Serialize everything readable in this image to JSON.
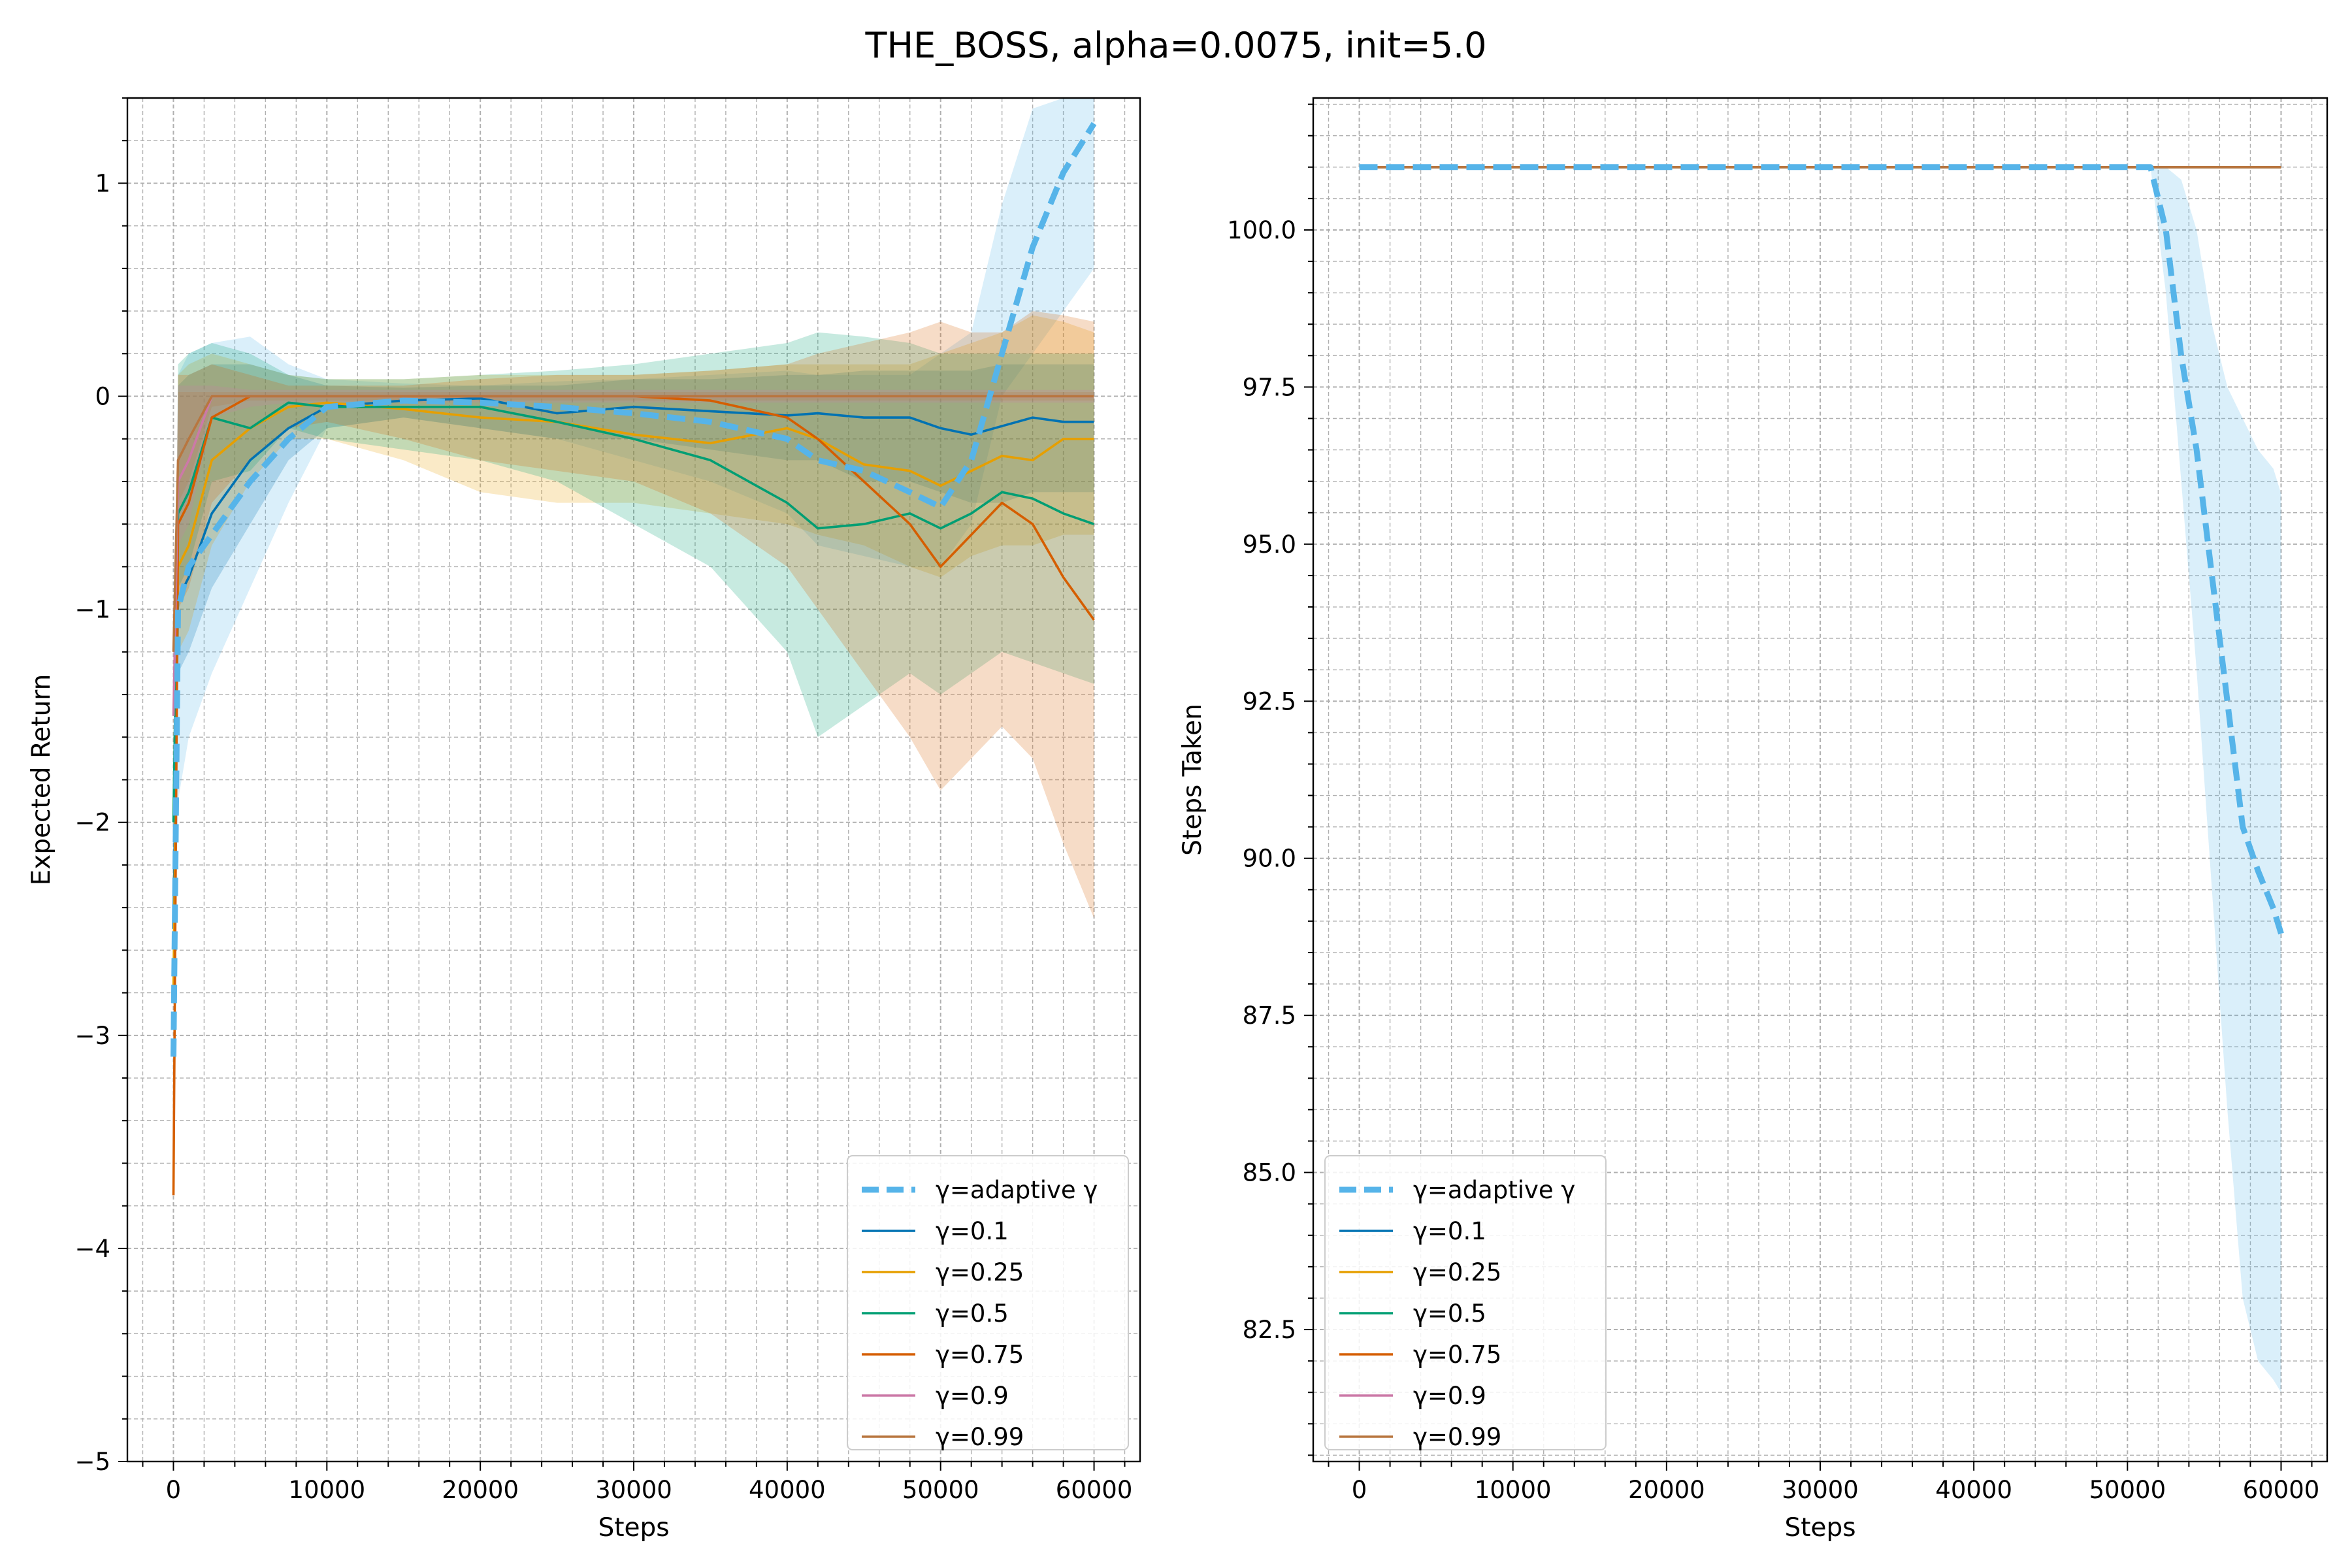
{
  "figure": {
    "title": "THE_BOSS, alpha=0.0075, init=5.0"
  },
  "colors": {
    "adaptive": "#56b4e9",
    "g01": "#0072b2",
    "g025": "#e69f00",
    "g05": "#009e73",
    "g075": "#d55e00",
    "g09": "#cc79a7",
    "g099": "#b8763f",
    "grid": "#b0b0b0"
  },
  "legend": {
    "entries": [
      {
        "label": "γ=adaptive γ",
        "color": "#56b4e9",
        "style": "dashed"
      },
      {
        "label": "γ=0.1",
        "color": "#0072b2",
        "style": "solid"
      },
      {
        "label": "γ=0.25",
        "color": "#e69f00",
        "style": "solid"
      },
      {
        "label": "γ=0.5",
        "color": "#009e73",
        "style": "solid"
      },
      {
        "label": "γ=0.75",
        "color": "#d55e00",
        "style": "solid"
      },
      {
        "label": "γ=0.9",
        "color": "#cc79a7",
        "style": "solid"
      },
      {
        "label": "γ=0.99",
        "color": "#b8763f",
        "style": "solid"
      }
    ]
  },
  "chart_data": [
    {
      "type": "line",
      "id": "left",
      "xlabel": "Steps",
      "ylabel": "Expected Return",
      "xlim": [
        -3000,
        63000
      ],
      "ylim": [
        -5,
        1.4
      ],
      "xticks": [
        0,
        10000,
        20000,
        30000,
        40000,
        50000,
        60000
      ],
      "yticks": [
        1,
        0,
        -1,
        -2,
        -3,
        -4,
        -5
      ],
      "ytick_labels": [
        "1",
        "0",
        "−1",
        "−2",
        "−3",
        "−4",
        "−5"
      ],
      "legend_loc": "lower right",
      "x": [
        0,
        300,
        1000,
        2500,
        5000,
        7500,
        10000,
        15000,
        20000,
        25000,
        30000,
        35000,
        40000,
        42000,
        45000,
        48000,
        50000,
        52000,
        54000,
        56000,
        58000,
        60000
      ],
      "series": [
        {
          "name": "γ=adaptive γ",
          "color": "#56b4e9",
          "style": "dashed",
          "values": [
            -3.1,
            -1.0,
            -0.8,
            -0.65,
            -0.4,
            -0.2,
            -0.05,
            -0.02,
            -0.03,
            -0.05,
            -0.08,
            -0.12,
            -0.2,
            -0.3,
            -0.35,
            -0.45,
            -0.52,
            -0.3,
            0.2,
            0.7,
            1.05,
            1.28
          ],
          "lower": [
            -3.1,
            -1.9,
            -1.6,
            -1.3,
            -0.9,
            -0.5,
            -0.15,
            -0.1,
            -0.15,
            -0.2,
            -0.3,
            -0.4,
            -0.55,
            -0.7,
            -0.75,
            -0.8,
            -0.8,
            -0.6,
            0.0,
            0.2,
            0.4,
            0.6
          ],
          "upper": [
            -3.1,
            0.1,
            0.2,
            0.25,
            0.28,
            0.15,
            0.08,
            0.06,
            0.05,
            0.07,
            0.08,
            0.1,
            0.12,
            0.1,
            0.1,
            0.1,
            0.2,
            0.3,
            0.9,
            1.35,
            1.4,
            1.4
          ]
        },
        {
          "name": "γ=0.1",
          "color": "#0072b2",
          "style": "solid",
          "values": [
            -2.5,
            -0.95,
            -0.85,
            -0.55,
            -0.3,
            -0.15,
            -0.05,
            -0.02,
            -0.01,
            -0.08,
            -0.05,
            -0.07,
            -0.09,
            -0.08,
            -0.1,
            -0.1,
            -0.15,
            -0.18,
            -0.14,
            -0.1,
            -0.12,
            -0.12
          ],
          "lower": [
            -2.5,
            -1.3,
            -1.2,
            -0.9,
            -0.6,
            -0.3,
            -0.15,
            -0.1,
            -0.15,
            -0.2,
            -0.2,
            -0.25,
            -0.3,
            -0.3,
            -0.4,
            -0.4,
            -0.45,
            -0.5,
            -0.5,
            -0.45,
            -0.45,
            -0.45
          ],
          "upper": [
            -2.5,
            0.05,
            0.1,
            0.15,
            0.15,
            0.1,
            0.05,
            0.04,
            0.05,
            0.05,
            0.08,
            0.08,
            0.1,
            0.1,
            0.12,
            0.12,
            0.12,
            0.12,
            0.15,
            0.15,
            0.15,
            0.15
          ]
        },
        {
          "name": "γ=0.25",
          "color": "#e69f00",
          "style": "solid",
          "values": [
            -2.8,
            -0.8,
            -0.7,
            -0.3,
            -0.15,
            -0.05,
            -0.03,
            -0.06,
            -0.1,
            -0.12,
            -0.18,
            -0.22,
            -0.15,
            -0.2,
            -0.32,
            -0.35,
            -0.42,
            -0.35,
            -0.28,
            -0.3,
            -0.2,
            -0.2
          ],
          "lower": [
            -2.8,
            -1.2,
            -1.1,
            -0.7,
            -0.4,
            -0.2,
            -0.2,
            -0.3,
            -0.45,
            -0.5,
            -0.5,
            -0.55,
            -0.6,
            -0.65,
            -0.7,
            -0.8,
            -0.85,
            -0.75,
            -0.7,
            -0.7,
            -0.65,
            -0.65
          ],
          "upper": [
            -2.8,
            0.1,
            0.15,
            0.2,
            0.15,
            0.1,
            0.08,
            0.08,
            0.1,
            0.1,
            0.1,
            0.12,
            0.15,
            0.15,
            0.15,
            0.15,
            0.2,
            0.25,
            0.3,
            0.38,
            0.35,
            0.3
          ]
        },
        {
          "name": "γ=0.5",
          "color": "#009e73",
          "style": "solid",
          "values": [
            -2.0,
            -0.55,
            -0.45,
            -0.1,
            -0.15,
            -0.03,
            -0.05,
            -0.05,
            -0.05,
            -0.12,
            -0.2,
            -0.3,
            -0.5,
            -0.62,
            -0.6,
            -0.55,
            -0.62,
            -0.55,
            -0.45,
            -0.48,
            -0.55,
            -0.6
          ],
          "lower": [
            -2.0,
            -0.9,
            -0.8,
            -0.4,
            -0.35,
            -0.15,
            -0.2,
            -0.25,
            -0.3,
            -0.4,
            -0.6,
            -0.8,
            -1.2,
            -1.6,
            -1.45,
            -1.3,
            -1.4,
            -1.3,
            -1.2,
            -1.25,
            -1.3,
            -1.35
          ],
          "upper": [
            -2.0,
            0.15,
            0.2,
            0.25,
            0.2,
            0.1,
            0.08,
            0.08,
            0.1,
            0.12,
            0.15,
            0.2,
            0.25,
            0.3,
            0.28,
            0.25,
            0.2,
            0.2,
            0.2,
            0.2,
            0.2,
            0.2
          ]
        },
        {
          "name": "γ=0.75",
          "color": "#d55e00",
          "style": "solid",
          "values": [
            -3.75,
            -0.6,
            -0.5,
            -0.1,
            0.0,
            0.0,
            0.0,
            0.0,
            0.0,
            0.0,
            0.0,
            -0.02,
            -0.1,
            -0.2,
            -0.4,
            -0.6,
            -0.8,
            -0.65,
            -0.5,
            -0.6,
            -0.85,
            -1.05
          ],
          "lower": [
            -3.75,
            -1.0,
            -0.9,
            -0.5,
            -0.3,
            -0.15,
            -0.12,
            -0.2,
            -0.3,
            -0.35,
            -0.4,
            -0.55,
            -0.8,
            -1.0,
            -1.3,
            -1.6,
            -1.85,
            -1.7,
            -1.55,
            -1.7,
            -2.1,
            -2.45
          ],
          "upper": [
            -3.75,
            0.1,
            0.1,
            0.15,
            0.1,
            0.05,
            0.05,
            0.05,
            0.08,
            0.1,
            0.1,
            0.12,
            0.15,
            0.2,
            0.25,
            0.3,
            0.35,
            0.3,
            0.3,
            0.4,
            0.38,
            0.35
          ]
        },
        {
          "name": "γ=0.9",
          "color": "#cc79a7",
          "style": "solid",
          "values": [
            -1.5,
            -0.4,
            -0.3,
            0.0,
            0.0,
            0.0,
            0.0,
            0.0,
            0.0,
            0.0,
            0.0,
            0.0,
            0.0,
            0.0,
            0.0,
            0.0,
            0.0,
            0.0,
            0.0,
            0.0,
            0.0,
            0.0
          ],
          "lower": [
            -1.5,
            -0.7,
            -0.6,
            -0.1,
            -0.05,
            -0.03,
            -0.03,
            -0.03,
            -0.03,
            -0.03,
            -0.03,
            -0.03,
            -0.03,
            -0.03,
            -0.03,
            -0.03,
            -0.03,
            -0.03,
            -0.03,
            -0.03,
            -0.03,
            -0.03
          ],
          "upper": [
            -1.5,
            0.05,
            0.05,
            0.05,
            0.03,
            0.03,
            0.03,
            0.03,
            0.03,
            0.03,
            0.03,
            0.03,
            0.03,
            0.03,
            0.03,
            0.03,
            0.03,
            0.03,
            0.03,
            0.03,
            0.03,
            0.03
          ]
        },
        {
          "name": "γ=0.99",
          "color": "#b8763f",
          "style": "solid",
          "values": [
            -1.2,
            -0.3,
            -0.2,
            0.0,
            0.0,
            0.0,
            0.0,
            0.0,
            0.0,
            0.0,
            0.0,
            0.0,
            0.0,
            0.0,
            0.0,
            0.0,
            0.0,
            0.0,
            0.0,
            0.0,
            0.0,
            0.0
          ],
          "lower": [
            -1.2,
            -0.5,
            -0.4,
            -0.05,
            -0.02,
            -0.02,
            -0.02,
            -0.02,
            -0.02,
            -0.02,
            -0.02,
            -0.02,
            -0.02,
            -0.02,
            -0.02,
            -0.02,
            -0.02,
            -0.02,
            -0.02,
            -0.02,
            -0.02,
            -0.02
          ],
          "upper": [
            -1.2,
            0.02,
            0.02,
            0.02,
            0.02,
            0.02,
            0.02,
            0.02,
            0.02,
            0.02,
            0.02,
            0.02,
            0.02,
            0.02,
            0.02,
            0.02,
            0.02,
            0.02,
            0.02,
            0.02,
            0.02,
            0.02
          ]
        }
      ]
    },
    {
      "type": "line",
      "id": "right",
      "xlabel": "Steps",
      "ylabel": "Steps Taken",
      "xlim": [
        -3000,
        63000
      ],
      "ylim": [
        80.4,
        102.1
      ],
      "xticks": [
        0,
        10000,
        20000,
        30000,
        40000,
        50000,
        60000
      ],
      "yticks": [
        100.0,
        97.5,
        95.0,
        92.5,
        90.0,
        87.5,
        85.0,
        82.5
      ],
      "ytick_labels": [
        "100.0",
        "97.5",
        "95.0",
        "92.5",
        "90.0",
        "87.5",
        "85.0",
        "82.5"
      ],
      "legend_loc": "lower left",
      "x": [
        0,
        10000,
        20000,
        30000,
        40000,
        50000,
        51500,
        52500,
        53500,
        54500,
        55500,
        56500,
        57500,
        58500,
        59500,
        60000
      ],
      "series": [
        {
          "name": "γ=adaptive γ",
          "color": "#56b4e9",
          "style": "dashed",
          "values": [
            101,
            101,
            101,
            101,
            101,
            101,
            101,
            100.0,
            98.0,
            96.5,
            94.5,
            92.5,
            90.5,
            89.8,
            89.2,
            88.8
          ],
          "lower": [
            101,
            101,
            101,
            101,
            101,
            101,
            101,
            99.0,
            96.0,
            93.0,
            89.5,
            86.0,
            83.0,
            82.0,
            81.7,
            81.5
          ],
          "upper": [
            101,
            101,
            101,
            101,
            101,
            101,
            101,
            101,
            100.8,
            100.0,
            98.5,
            97.5,
            97.0,
            96.5,
            96.2,
            95.8
          ]
        },
        {
          "name": "γ=0.1",
          "color": "#0072b2",
          "style": "solid",
          "values": [
            101,
            101,
            101,
            101,
            101,
            101,
            101,
            101,
            101,
            101,
            101,
            101,
            101,
            101,
            101,
            101
          ]
        },
        {
          "name": "γ=0.25",
          "color": "#e69f00",
          "style": "solid",
          "values": [
            101,
            101,
            101,
            101,
            101,
            101,
            101,
            101,
            101,
            101,
            101,
            101,
            101,
            101,
            101,
            101
          ]
        },
        {
          "name": "γ=0.5",
          "color": "#009e73",
          "style": "solid",
          "values": [
            101,
            101,
            101,
            101,
            101,
            101,
            101,
            101,
            101,
            101,
            101,
            101,
            101,
            101,
            101,
            101
          ]
        },
        {
          "name": "γ=0.75",
          "color": "#d55e00",
          "style": "solid",
          "values": [
            101,
            101,
            101,
            101,
            101,
            101,
            101,
            101,
            101,
            101,
            101,
            101,
            101,
            101,
            101,
            101
          ]
        },
        {
          "name": "γ=0.9",
          "color": "#cc79a7",
          "style": "solid",
          "values": [
            101,
            101,
            101,
            101,
            101,
            101,
            101,
            101,
            101,
            101,
            101,
            101,
            101,
            101,
            101,
            101
          ]
        },
        {
          "name": "γ=0.99",
          "color": "#b8763f",
          "style": "solid",
          "values": [
            101,
            101,
            101,
            101,
            101,
            101,
            101,
            101,
            101,
            101,
            101,
            101,
            101,
            101,
            101,
            101
          ]
        }
      ]
    }
  ]
}
